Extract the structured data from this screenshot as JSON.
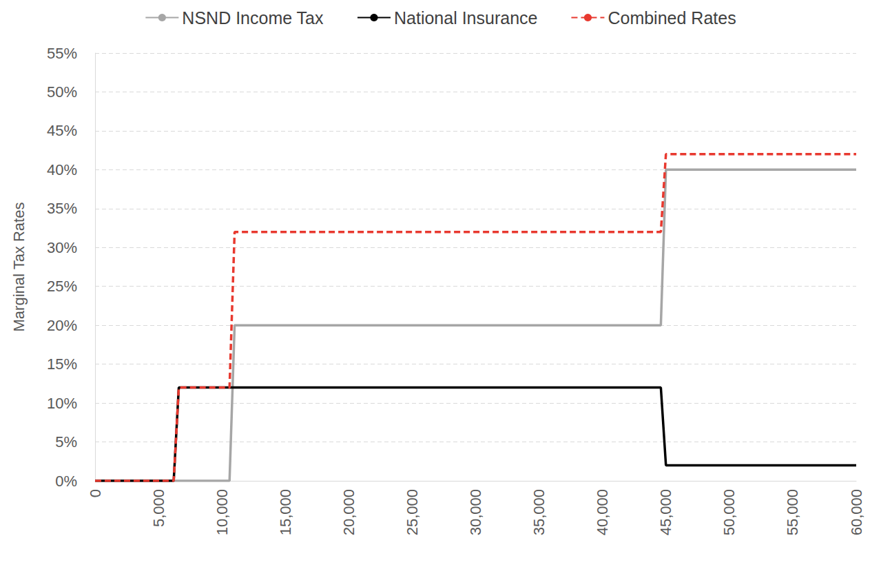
{
  "chart_data": {
    "type": "line",
    "x": [
      0,
      6200,
      6600,
      10600,
      11000,
      44600,
      45000,
      60000
    ],
    "series": [
      {
        "name": "NSND Income Tax",
        "color": "#a6a6a6",
        "line_style": "solid",
        "values": [
          0,
          0,
          0,
          0,
          20,
          20,
          40,
          40
        ]
      },
      {
        "name": "National Insurance",
        "color": "#000000",
        "line_style": "solid",
        "values": [
          0,
          0,
          12,
          12,
          12,
          12,
          2,
          2
        ]
      },
      {
        "name": "Combined Rates",
        "color": "#e8392f",
        "line_style": "dashed",
        "values": [
          0,
          0,
          12,
          12,
          32,
          32,
          42,
          42
        ]
      }
    ],
    "y_label": "Marginal Tax Rates",
    "xlim": [
      0,
      60000
    ],
    "xticks": [
      0,
      {
        "value": 5000,
        "label": "5,000"
      },
      {
        "value": 10000,
        "label": "10,000"
      },
      {
        "value": 15000,
        "label": "15,000"
      },
      {
        "value": 20000,
        "label": "20,000"
      },
      {
        "value": 25000,
        "label": "25,000"
      },
      {
        "value": 30000,
        "label": "30,000"
      },
      {
        "value": 35000,
        "label": "35,000"
      },
      {
        "value": 40000,
        "label": "40,000"
      },
      {
        "value": 45000,
        "label": "45,000"
      },
      {
        "value": 50000,
        "label": "50,000"
      },
      {
        "value": 55000,
        "label": "55,000"
      },
      {
        "value": 60000,
        "label": "60,000"
      }
    ],
    "ylim": [
      0,
      55
    ],
    "yticks": [
      {
        "value": 0,
        "label": "0%"
      },
      {
        "value": 5,
        "label": "5%"
      },
      {
        "value": 10,
        "label": "10%"
      },
      {
        "value": 15,
        "label": "15%"
      },
      {
        "value": 20,
        "label": "20%"
      },
      {
        "value": 25,
        "label": "25%"
      },
      {
        "value": 30,
        "label": "30%"
      },
      {
        "value": 35,
        "label": "35%"
      },
      {
        "value": 40,
        "label": "40%"
      },
      {
        "value": 45,
        "label": "45%"
      },
      {
        "value": 50,
        "label": "50%"
      },
      {
        "value": 55,
        "label": "55%"
      }
    ],
    "grid": true,
    "legend": "top"
  }
}
